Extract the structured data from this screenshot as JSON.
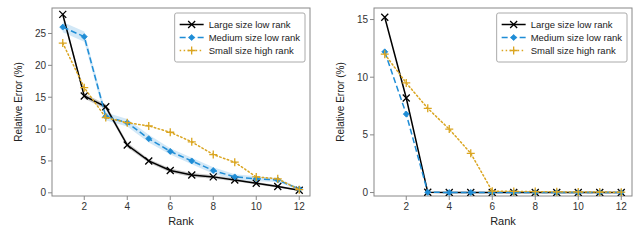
{
  "chart_data": [
    {
      "type": "line",
      "x": [
        1,
        2,
        3,
        4,
        5,
        6,
        7,
        8,
        9,
        10,
        11,
        12
      ],
      "xlabel": "Rank",
      "ylabel": "Relative Error (%)",
      "xlim": [
        0.5,
        12.5
      ],
      "xticks": [
        2,
        4,
        6,
        8,
        10,
        12
      ],
      "ylim": [
        -0.5,
        29
      ],
      "yticks": [
        0,
        5,
        10,
        15,
        20,
        25
      ],
      "grid": false,
      "legend": "upper right",
      "series": [
        {
          "name": "Large size low rank",
          "color": "#000000",
          "line_style": "solid",
          "marker": "x",
          "values": [
            28.0,
            15.2,
            13.5,
            7.5,
            5.0,
            3.5,
            2.8,
            2.5,
            2.0,
            1.5,
            1.0,
            0.4
          ],
          "std": [
            0.5,
            0.4,
            0.4,
            0.4,
            0.3,
            0.3,
            0.3,
            0.3,
            0.2,
            0.2,
            0.2,
            0.1
          ]
        },
        {
          "name": "Medium size low rank",
          "color": "#1f8dd6",
          "line_style": "dashed",
          "marker": "diamond",
          "values": [
            26.0,
            24.5,
            12.0,
            11.0,
            8.5,
            6.5,
            5.0,
            3.5,
            2.5,
            2.2,
            2.0,
            0.6
          ],
          "std": [
            0.8,
            0.8,
            0.6,
            0.6,
            0.6,
            0.5,
            0.5,
            0.5,
            0.4,
            0.4,
            0.3,
            0.2
          ]
        },
        {
          "name": "Small size high rank",
          "color": "#daa520",
          "line_style": "dotted",
          "marker": "plus",
          "values": [
            23.5,
            16.5,
            11.8,
            11.0,
            10.5,
            9.5,
            8.0,
            6.0,
            4.8,
            2.5,
            2.2,
            0.5
          ]
        }
      ]
    },
    {
      "type": "line",
      "x": [
        1,
        2,
        3,
        4,
        5,
        6,
        7,
        8,
        9,
        10,
        11,
        12
      ],
      "xlabel": "Rank",
      "ylabel": "Relative Error (%)",
      "xlim": [
        0.5,
        12.5
      ],
      "xticks": [
        2,
        4,
        6,
        8,
        10,
        12
      ],
      "ylim": [
        -0.3,
        16
      ],
      "yticks": [
        0,
        5,
        10,
        15
      ],
      "grid": false,
      "legend": "upper right",
      "series": [
        {
          "name": "Large size low rank",
          "color": "#000000",
          "line_style": "solid",
          "marker": "x",
          "values": [
            15.2,
            8.2,
            0.02,
            0.01,
            0.01,
            0.01,
            0.01,
            0.01,
            0.01,
            0.01,
            0.01,
            0.01
          ]
        },
        {
          "name": "Medium size low rank",
          "color": "#1f8dd6",
          "line_style": "dashed",
          "marker": "diamond",
          "values": [
            12.2,
            6.8,
            0.02,
            0.01,
            0.01,
            0.01,
            0.01,
            0.01,
            0.01,
            0.01,
            0.01,
            0.01
          ]
        },
        {
          "name": "Small size high rank",
          "color": "#daa520",
          "line_style": "dotted",
          "marker": "plus",
          "values": [
            12.0,
            9.5,
            7.3,
            5.5,
            3.4,
            0.12,
            0.1,
            0.08,
            0.06,
            0.05,
            0.04,
            0.03
          ]
        }
      ]
    }
  ]
}
